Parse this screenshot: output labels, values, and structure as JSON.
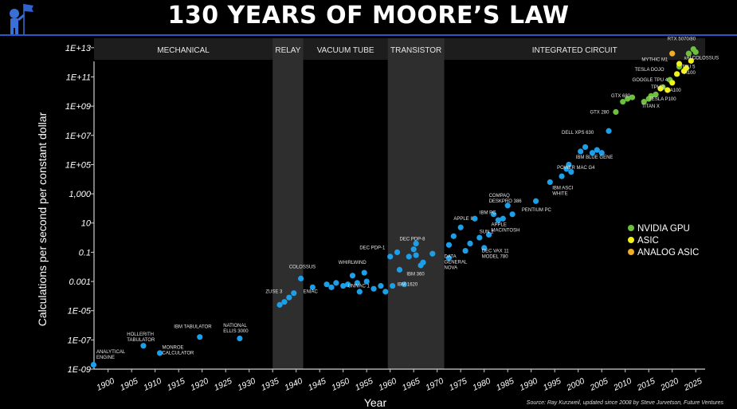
{
  "title": "130 YEARS OF MOORE’S LAW",
  "source": "Source: Ray Kurzweil, updated since 2008 by Steve Jurvetson, Future Ventures",
  "chart_data": {
    "type": "scatter",
    "xlabel": "Year",
    "ylabel": "Calculations per second per constant dollar",
    "xlim": [
      1897,
      2027
    ],
    "y_scale": "log",
    "ylim_exp": [
      -9,
      13.7
    ],
    "x_ticks": [
      "1900",
      "1905",
      "1910",
      "1915",
      "1920",
      "1925",
      "1930",
      "1935",
      "1940",
      "1945",
      "1950",
      "1955",
      "1960",
      "1965",
      "1970",
      "1975",
      "1980",
      "1985",
      "1990",
      "1995",
      "2000",
      "2005",
      "2010",
      "2015",
      "2020",
      "2025"
    ],
    "y_ticks": [
      {
        "label": "1E-09",
        "exp": -9
      },
      {
        "label": "1E-07",
        "exp": -7
      },
      {
        "label": "1E-05",
        "exp": -5
      },
      {
        "label": "0.001",
        "exp": -3
      },
      {
        "label": "0.1",
        "exp": -1
      },
      {
        "label": "10",
        "exp": 1
      },
      {
        "label": "1,000",
        "exp": 3
      },
      {
        "label": "1E+05",
        "exp": 5
      },
      {
        "label": "1E+07",
        "exp": 7
      },
      {
        "label": "1E+09",
        "exp": 9
      },
      {
        "label": "1E+11",
        "exp": 11
      },
      {
        "label": "1E+13",
        "exp": 13
      }
    ],
    "eras": [
      {
        "label": "MECHANICAL",
        "from": 1897,
        "to": 1935,
        "shaded": false
      },
      {
        "label": "RELAY",
        "from": 1935,
        "to": 1941.5,
        "shaded": true
      },
      {
        "label": "VACUUM TUBE",
        "from": 1941.5,
        "to": 1959.5,
        "shaded": false
      },
      {
        "label": "TRANSISTOR",
        "from": 1959.5,
        "to": 1971.5,
        "shaded": true
      },
      {
        "label": "INTEGRATED CIRCUIT",
        "from": 1971.5,
        "to": 2027,
        "shaded": false
      }
    ],
    "legend": {
      "position": "right",
      "items": [
        {
          "name": "NVIDIA GPU",
          "color": "#6fbf3f"
        },
        {
          "name": "ASIC",
          "color": "#f2f21a"
        },
        {
          "name": "ANALOG ASIC",
          "color": "#f0ad28"
        }
      ]
    },
    "series": [
      {
        "color": "#1c9fe8",
        "points": [
          {
            "x": 1896.9,
            "y": -8.7
          },
          {
            "x": 1907.5,
            "y": -7.4
          },
          {
            "x": 1911,
            "y": -7.9
          },
          {
            "x": 1919.5,
            "y": -6.8
          },
          {
            "x": 1928,
            "y": -6.9
          },
          {
            "x": 1936.5,
            "y": -4.6
          },
          {
            "x": 1937.5,
            "y": -4.4
          },
          {
            "x": 1938.5,
            "y": -4.1
          },
          {
            "x": 1939.5,
            "y": -3.8
          },
          {
            "x": 1941,
            "y": -2.8
          },
          {
            "x": 1943.5,
            "y": -3.4
          },
          {
            "x": 1946.5,
            "y": -3.2
          },
          {
            "x": 1947.5,
            "y": -3.4
          },
          {
            "x": 1948.5,
            "y": -3.1
          },
          {
            "x": 1950,
            "y": -3.3
          },
          {
            "x": 1951,
            "y": -3.2
          },
          {
            "x": 1952,
            "y": -2.6
          },
          {
            "x": 1953,
            "y": -3.1
          },
          {
            "x": 1953.5,
            "y": -3.7
          },
          {
            "x": 1954.5,
            "y": -2.4
          },
          {
            "x": 1955,
            "y": -3.0
          },
          {
            "x": 1956.5,
            "y": -3.5
          },
          {
            "x": 1958,
            "y": -3.3
          },
          {
            "x": 1959,
            "y": -3.7
          },
          {
            "x": 1960.5,
            "y": -3.3
          },
          {
            "x": 1960,
            "y": -1.3
          },
          {
            "x": 1961.5,
            "y": -1.0
          },
          {
            "x": 1962,
            "y": -2.2
          },
          {
            "x": 1963,
            "y": -3.2
          },
          {
            "x": 1964,
            "y": -1.3
          },
          {
            "x": 1965,
            "y": -0.8
          },
          {
            "x": 1965.5,
            "y": -1.2
          },
          {
            "x": 1965.5,
            "y": -0.4
          },
          {
            "x": 1966.5,
            "y": -1.9
          },
          {
            "x": 1967,
            "y": -1.7
          },
          {
            "x": 1969,
            "y": -1.1
          },
          {
            "x": 1972.5,
            "y": -0.5
          },
          {
            "x": 1972.5,
            "y": -1.4
          },
          {
            "x": 1973.5,
            "y": 0.1
          },
          {
            "x": 1975,
            "y": 0.7
          },
          {
            "x": 1976,
            "y": -0.9
          },
          {
            "x": 1977,
            "y": -0.4
          },
          {
            "x": 1978,
            "y": 1.3
          },
          {
            "x": 1979,
            "y": 0.0
          },
          {
            "x": 1980,
            "y": -0.7
          },
          {
            "x": 1981,
            "y": 0.2
          },
          {
            "x": 1982,
            "y": 1.6
          },
          {
            "x": 1983,
            "y": 1.2
          },
          {
            "x": 1984,
            "y": 1.3
          },
          {
            "x": 1985,
            "y": 2.2
          },
          {
            "x": 1986,
            "y": 1.6
          },
          {
            "x": 1991,
            "y": 2.5
          },
          {
            "x": 1994,
            "y": 3.8
          },
          {
            "x": 1996.5,
            "y": 4.2
          },
          {
            "x": 1997.5,
            "y": 4.7
          },
          {
            "x": 1998,
            "y": 5.0
          },
          {
            "x": 1998.5,
            "y": 4.5
          },
          {
            "x": 2000.5,
            "y": 5.9
          },
          {
            "x": 2001.5,
            "y": 6.2
          },
          {
            "x": 2003,
            "y": 5.8
          },
          {
            "x": 2004,
            "y": 6.0
          },
          {
            "x": 2005,
            "y": 5.8
          },
          {
            "x": 2006.5,
            "y": 7.3
          }
        ]
      },
      {
        "name": "NVIDIA GPU",
        "color": "#6fbf3f",
        "points": [
          {
            "x": 2008,
            "y": 8.6
          },
          {
            "x": 2009.5,
            "y": 9.3
          },
          {
            "x": 2010.5,
            "y": 9.5
          },
          {
            "x": 2011.5,
            "y": 9.6
          },
          {
            "x": 2014,
            "y": 9.3
          },
          {
            "x": 2015,
            "y": 9.5
          },
          {
            "x": 2015.5,
            "y": 9.7
          },
          {
            "x": 2016.5,
            "y": 9.8
          },
          {
            "x": 2018,
            "y": 10.3
          },
          {
            "x": 2019.5,
            "y": 10.8
          },
          {
            "x": 2021.5,
            "y": 11.7
          },
          {
            "x": 2023.5,
            "y": 12.6
          },
          {
            "x": 2024.5,
            "y": 12.9
          },
          {
            "x": 2025,
            "y": 12.7
          }
        ]
      },
      {
        "name": "ASIC",
        "color": "#f2f21a",
        "points": [
          {
            "x": 2017.5,
            "y": 10.2
          },
          {
            "x": 2019,
            "y": 10.1
          },
          {
            "x": 2020,
            "y": 10.6
          },
          {
            "x": 2021,
            "y": 11.2
          },
          {
            "x": 2021.5,
            "y": 11.9
          },
          {
            "x": 2022.5,
            "y": 11.4
          },
          {
            "x": 2023,
            "y": 11.6
          },
          {
            "x": 2024,
            "y": 12.1
          }
        ]
      },
      {
        "name": "ANALOG ASIC",
        "color": "#f0ad28",
        "points": [
          {
            "x": 2020,
            "y": 12.6
          }
        ]
      }
    ],
    "annotations": [
      {
        "text": "ANALYTICAL\nENGINE",
        "x": 1897.5,
        "y": -7.9
      },
      {
        "text": "HOLLERITH\nTABULATOR",
        "x": 1904,
        "y": -6.7
      },
      {
        "text": "MONROE\nCALCULATOR",
        "x": 1911.5,
        "y": -7.6
      },
      {
        "text": "IBM TABULATOR",
        "x": 1914,
        "y": -6.2
      },
      {
        "text": "NATIONAL\nELLIS 3000",
        "x": 1924.5,
        "y": -6.1
      },
      {
        "text": "ZUSE 3",
        "x": 1933.5,
        "y": -3.8
      },
      {
        "text": "COLOSSUS",
        "x": 1938.5,
        "y": -2.1
      },
      {
        "text": "ENIAC",
        "x": 1941.5,
        "y": -3.8
      },
      {
        "text": "WHIRLWIND",
        "x": 1949,
        "y": -1.8
      },
      {
        "text": "UNIVAC 1",
        "x": 1951,
        "y": -3.4
      },
      {
        "text": "DEC PDP-1",
        "x": 1953.5,
        "y": -0.8
      },
      {
        "text": "DEC PDP-8",
        "x": 1962,
        "y": -0.2
      },
      {
        "text": "IBM 360",
        "x": 1963.5,
        "y": -2.6
      },
      {
        "text": "IBM 1620",
        "x": 1961.5,
        "y": -3.3
      },
      {
        "text": "DATA\nGENERAL\nNOVA",
        "x": 1971.5,
        "y": -1.4
      },
      {
        "text": "APPLE II",
        "x": 1973.5,
        "y": 1.2
      },
      {
        "text": "IBM PC",
        "x": 1979,
        "y": 1.6
      },
      {
        "text": "SUN 1",
        "x": 1979,
        "y": 0.3
      },
      {
        "text": "DEC VAX 11\nMODEL 780",
        "x": 1979.5,
        "y": -1.0
      },
      {
        "text": "COMPAQ\nDESKPRO 386",
        "x": 1981,
        "y": 2.8
      },
      {
        "text": "APPLE\nMACINTOSH",
        "x": 1981.5,
        "y": 0.8
      },
      {
        "text": "PENTIUM PC",
        "x": 1988,
        "y": 1.8
      },
      {
        "text": "IBM ASCI\nWHITE",
        "x": 1994.5,
        "y": 3.3
      },
      {
        "text": "POWER MAC G4",
        "x": 1995.5,
        "y": 4.7
      },
      {
        "text": "IBM BLUE GENE",
        "x": 1999.5,
        "y": 5.4
      },
      {
        "text": "DELL XPS 630",
        "x": 1996.5,
        "y": 7.1
      },
      {
        "text": "GTX 280",
        "x": 2002.5,
        "y": 8.5
      },
      {
        "text": "GTX 680",
        "x": 2007,
        "y": 9.6
      },
      {
        "text": "TITAN X",
        "x": 2013.5,
        "y": 8.9
      },
      {
        "text": "TESLA P100",
        "x": 2015,
        "y": 9.4
      },
      {
        "text": "TPU 3",
        "x": 2015.5,
        "y": 10.2
      },
      {
        "text": "A100",
        "x": 2019.5,
        "y": 10.0
      },
      {
        "text": "GOOGLE TPU 4",
        "x": 2011.5,
        "y": 10.7
      },
      {
        "text": "TESLA DOJO",
        "x": 2012,
        "y": 11.4
      },
      {
        "text": "MYTHIC M1",
        "x": 2013.5,
        "y": 12.1
      },
      {
        "text": "TPU 5",
        "x": 2022,
        "y": 11.6
      },
      {
        "text": "H100",
        "x": 2022.5,
        "y": 11.2
      },
      {
        "text": "RTX 5070/80",
        "x": 2019,
        "y": 13.5
      },
      {
        "text": "xAI COLOSSUS",
        "x": 2022.5,
        "y": 12.2
      }
    ]
  }
}
